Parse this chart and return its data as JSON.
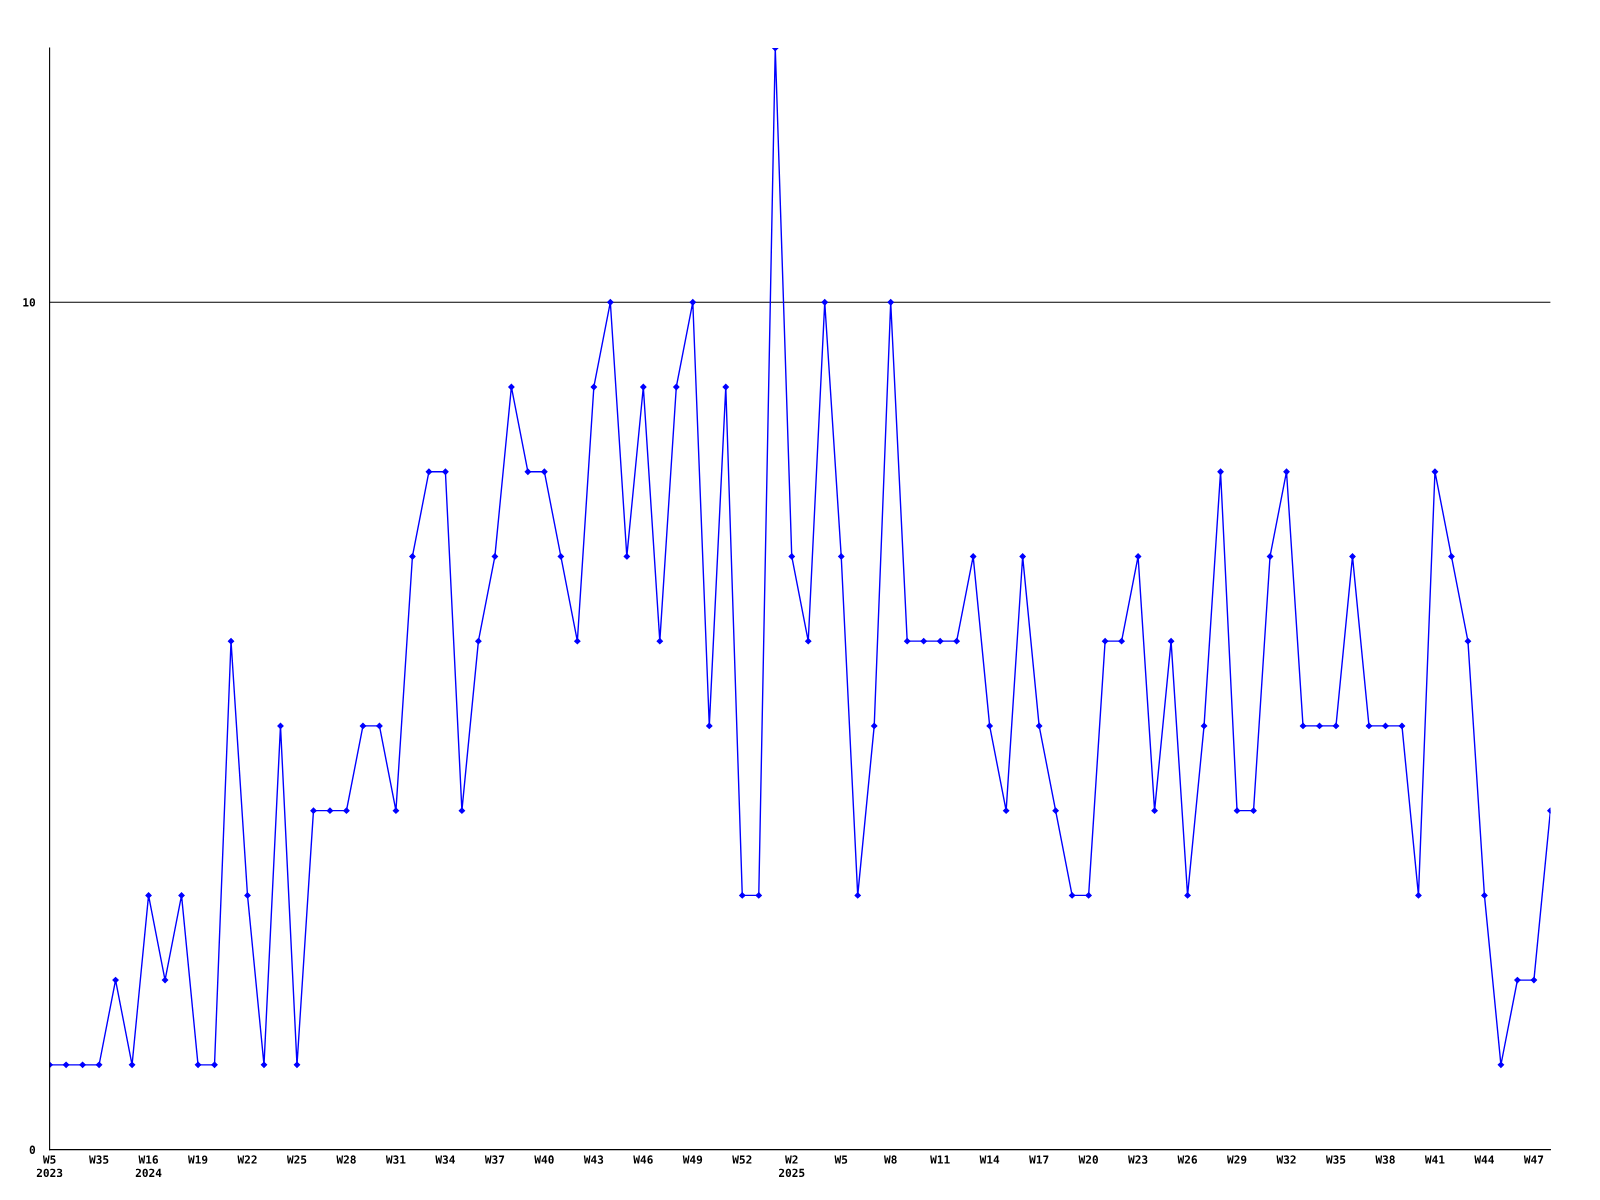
{
  "chart_data": {
    "type": "line",
    "categories": [
      "W5\n2023",
      null,
      null,
      "W35",
      null,
      null,
      "W16\n2024",
      null,
      null,
      "W19",
      null,
      null,
      "W22",
      null,
      null,
      "W25",
      null,
      null,
      "W28",
      null,
      null,
      "W31",
      null,
      null,
      "W34",
      null,
      null,
      "W37",
      null,
      null,
      "W40",
      null,
      null,
      "W43",
      null,
      null,
      "W46",
      null,
      null,
      "W49",
      null,
      null,
      "W52",
      null,
      null,
      "W2\n2025",
      null,
      null,
      "W5",
      null,
      null,
      "W8",
      null,
      null,
      "W11",
      null,
      null,
      "W14",
      null,
      null,
      "W17",
      null,
      null,
      "W20",
      null,
      null,
      "W23",
      null,
      null,
      "W26",
      null,
      null,
      "W29",
      null,
      null,
      "W32",
      null,
      null,
      "W35",
      null,
      null,
      "W38",
      null,
      null,
      "W41",
      null,
      null,
      "W44",
      null,
      null,
      "W47",
      null
    ],
    "series": [
      {
        "color": "#0000ff",
        "values": [
          1,
          1,
          1,
          1,
          2,
          1,
          3,
          2,
          3,
          1,
          1,
          6,
          3,
          1,
          5,
          1,
          4,
          4,
          4,
          5,
          5,
          4,
          7,
          8,
          8,
          4,
          6,
          7,
          9,
          8,
          8,
          7,
          6,
          9,
          10,
          7,
          9,
          6,
          9,
          10,
          5,
          9,
          3,
          3,
          13,
          7,
          6,
          10,
          7,
          3,
          5,
          10,
          6,
          6,
          6,
          6,
          7,
          5,
          4,
          7,
          5,
          4,
          3,
          3,
          6,
          6,
          7,
          4,
          6,
          3,
          5,
          8,
          4,
          4,
          7,
          8,
          5,
          5,
          5,
          7,
          5,
          5,
          5,
          3,
          8,
          7,
          6,
          3,
          1,
          2,
          2,
          4
        ]
      }
    ],
    "ylim": [
      0,
      13
    ],
    "yticks": [
      0,
      10
    ],
    "grid": "y",
    "marker": "diamond",
    "line_style": "solid",
    "legend": false
  }
}
